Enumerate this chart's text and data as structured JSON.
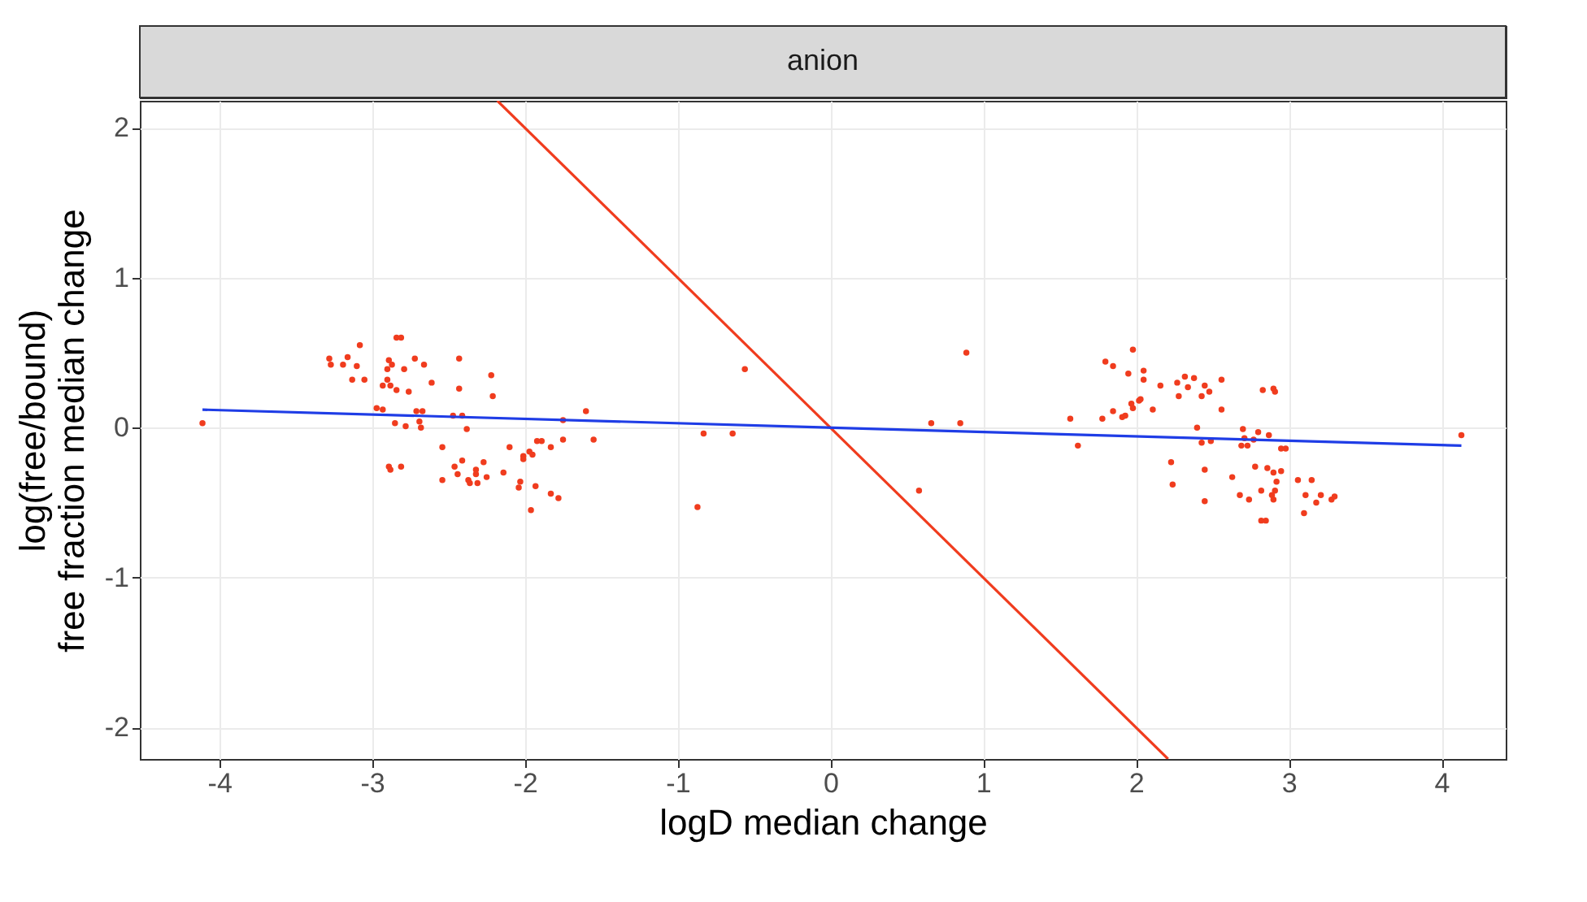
{
  "chart_data": {
    "type": "scatter",
    "title": "anion",
    "xlabel": "logD median change",
    "ylabel": "log(free/bound)\nfree fraction median change",
    "xlim": [
      -4.52,
      4.42
    ],
    "ylim": [
      -2.21,
      2.18
    ],
    "xticks": [
      -4,
      -3,
      -2,
      -1,
      0,
      1,
      2,
      3,
      4
    ],
    "yticks": [
      -2,
      -1,
      0,
      1,
      2
    ],
    "grid": true,
    "series": [
      {
        "color": "#f03c1e",
        "x": [
          -4.11,
          -3.08,
          -3.28,
          -3.27,
          -3.19,
          -3.16,
          -3.1,
          -3.13,
          -3.05,
          -2.84,
          -2.81,
          -2.89,
          -2.87,
          -2.9,
          -2.79,
          -2.72,
          -2.66,
          -2.9,
          -2.93,
          -2.88,
          -2.84,
          -2.76,
          -2.61,
          -2.43,
          -2.22,
          -2.43,
          -2.21,
          -2.97,
          -2.93,
          -2.71,
          -2.67,
          -2.85,
          -2.78,
          -2.69,
          -2.68,
          -2.47,
          -2.41,
          -2.38,
          -2.54,
          -2.89,
          -2.88,
          -2.81,
          -2.46,
          -2.41,
          -2.27,
          -2.54,
          -2.44,
          -2.37,
          -2.32,
          -2.32,
          -2.31,
          -2.25,
          -2.36,
          -1.6,
          -1.75,
          -1.55,
          -1.75,
          -1.92,
          -1.89,
          -2.1,
          -1.83,
          -1.97,
          -1.95,
          -2.01,
          -2.01,
          -2.14,
          -2.03,
          -2.04,
          -1.93,
          -1.83,
          -1.78,
          -1.96,
          -0.56,
          -0.83,
          -0.64,
          -0.87,
          0.89,
          0.66,
          0.85,
          0.58,
          1.57,
          1.62,
          1.78,
          1.8,
          1.85,
          1.98,
          1.95,
          1.85,
          1.91,
          1.93,
          1.97,
          1.98,
          2.02,
          2.03,
          2.05,
          2.05,
          2.11,
          2.16,
          2.27,
          2.28,
          2.23,
          2.24,
          2.32,
          2.38,
          2.34,
          2.45,
          2.56,
          2.43,
          2.48,
          2.83,
          2.9,
          2.91,
          2.56,
          2.4,
          2.43,
          2.49,
          2.7,
          2.8,
          2.87,
          2.71,
          2.77,
          2.69,
          2.73,
          2.95,
          2.98,
          2.45,
          2.45,
          2.63,
          2.78,
          2.86,
          2.9,
          2.95,
          2.92,
          2.82,
          2.91,
          2.89,
          2.9,
          2.68,
          2.74,
          3.06,
          3.15,
          3.11,
          3.21,
          3.18,
          3.28,
          3.3,
          3.1,
          2.82,
          2.85,
          4.13
        ],
        "values": [
          0.03,
          0.55,
          0.46,
          0.42,
          0.42,
          0.47,
          0.41,
          0.32,
          0.32,
          0.6,
          0.6,
          0.45,
          0.42,
          0.39,
          0.39,
          0.46,
          0.42,
          0.32,
          0.28,
          0.28,
          0.25,
          0.24,
          0.3,
          0.46,
          0.35,
          0.26,
          0.21,
          0.13,
          0.12,
          0.11,
          0.11,
          0.03,
          0.01,
          0.04,
          0.0,
          0.08,
          0.08,
          -0.01,
          -0.13,
          -0.26,
          -0.28,
          -0.26,
          -0.26,
          -0.22,
          -0.23,
          -0.35,
          -0.31,
          -0.35,
          -0.28,
          -0.31,
          -0.37,
          -0.33,
          -0.37,
          0.11,
          0.05,
          -0.08,
          -0.08,
          -0.09,
          -0.09,
          -0.13,
          -0.13,
          -0.16,
          -0.18,
          -0.19,
          -0.21,
          -0.3,
          -0.36,
          -0.4,
          -0.39,
          -0.44,
          -0.47,
          -0.55,
          0.39,
          -0.04,
          -0.04,
          -0.53,
          0.5,
          0.03,
          0.03,
          -0.42,
          0.06,
          -0.12,
          0.06,
          0.44,
          0.41,
          0.52,
          0.36,
          0.11,
          0.07,
          0.08,
          0.16,
          0.13,
          0.18,
          0.19,
          0.32,
          0.38,
          0.12,
          0.28,
          0.3,
          0.21,
          -0.23,
          -0.38,
          0.34,
          0.33,
          0.27,
          0.28,
          0.32,
          0.21,
          0.24,
          0.25,
          0.26,
          0.24,
          0.12,
          0.0,
          -0.1,
          -0.09,
          -0.01,
          -0.03,
          -0.05,
          -0.07,
          -0.08,
          -0.12,
          -0.12,
          -0.14,
          -0.14,
          -0.28,
          -0.49,
          -0.33,
          -0.26,
          -0.27,
          -0.3,
          -0.29,
          -0.36,
          -0.42,
          -0.42,
          -0.45,
          -0.48,
          -0.45,
          -0.48,
          -0.35,
          -0.35,
          -0.45,
          -0.45,
          -0.5,
          -0.48,
          -0.46,
          -0.57,
          -0.62,
          -0.62,
          -0.05
        ]
      },
      {
        "type": "line",
        "color": "#f03c1e",
        "x": [
          -2.18,
          2.21
        ],
        "values": [
          2.18,
          -2.21
        ]
      },
      {
        "type": "line",
        "color": "#1f3de6",
        "x": [
          -4.11,
          4.13
        ],
        "values": [
          0.12,
          -0.12
        ]
      }
    ]
  }
}
